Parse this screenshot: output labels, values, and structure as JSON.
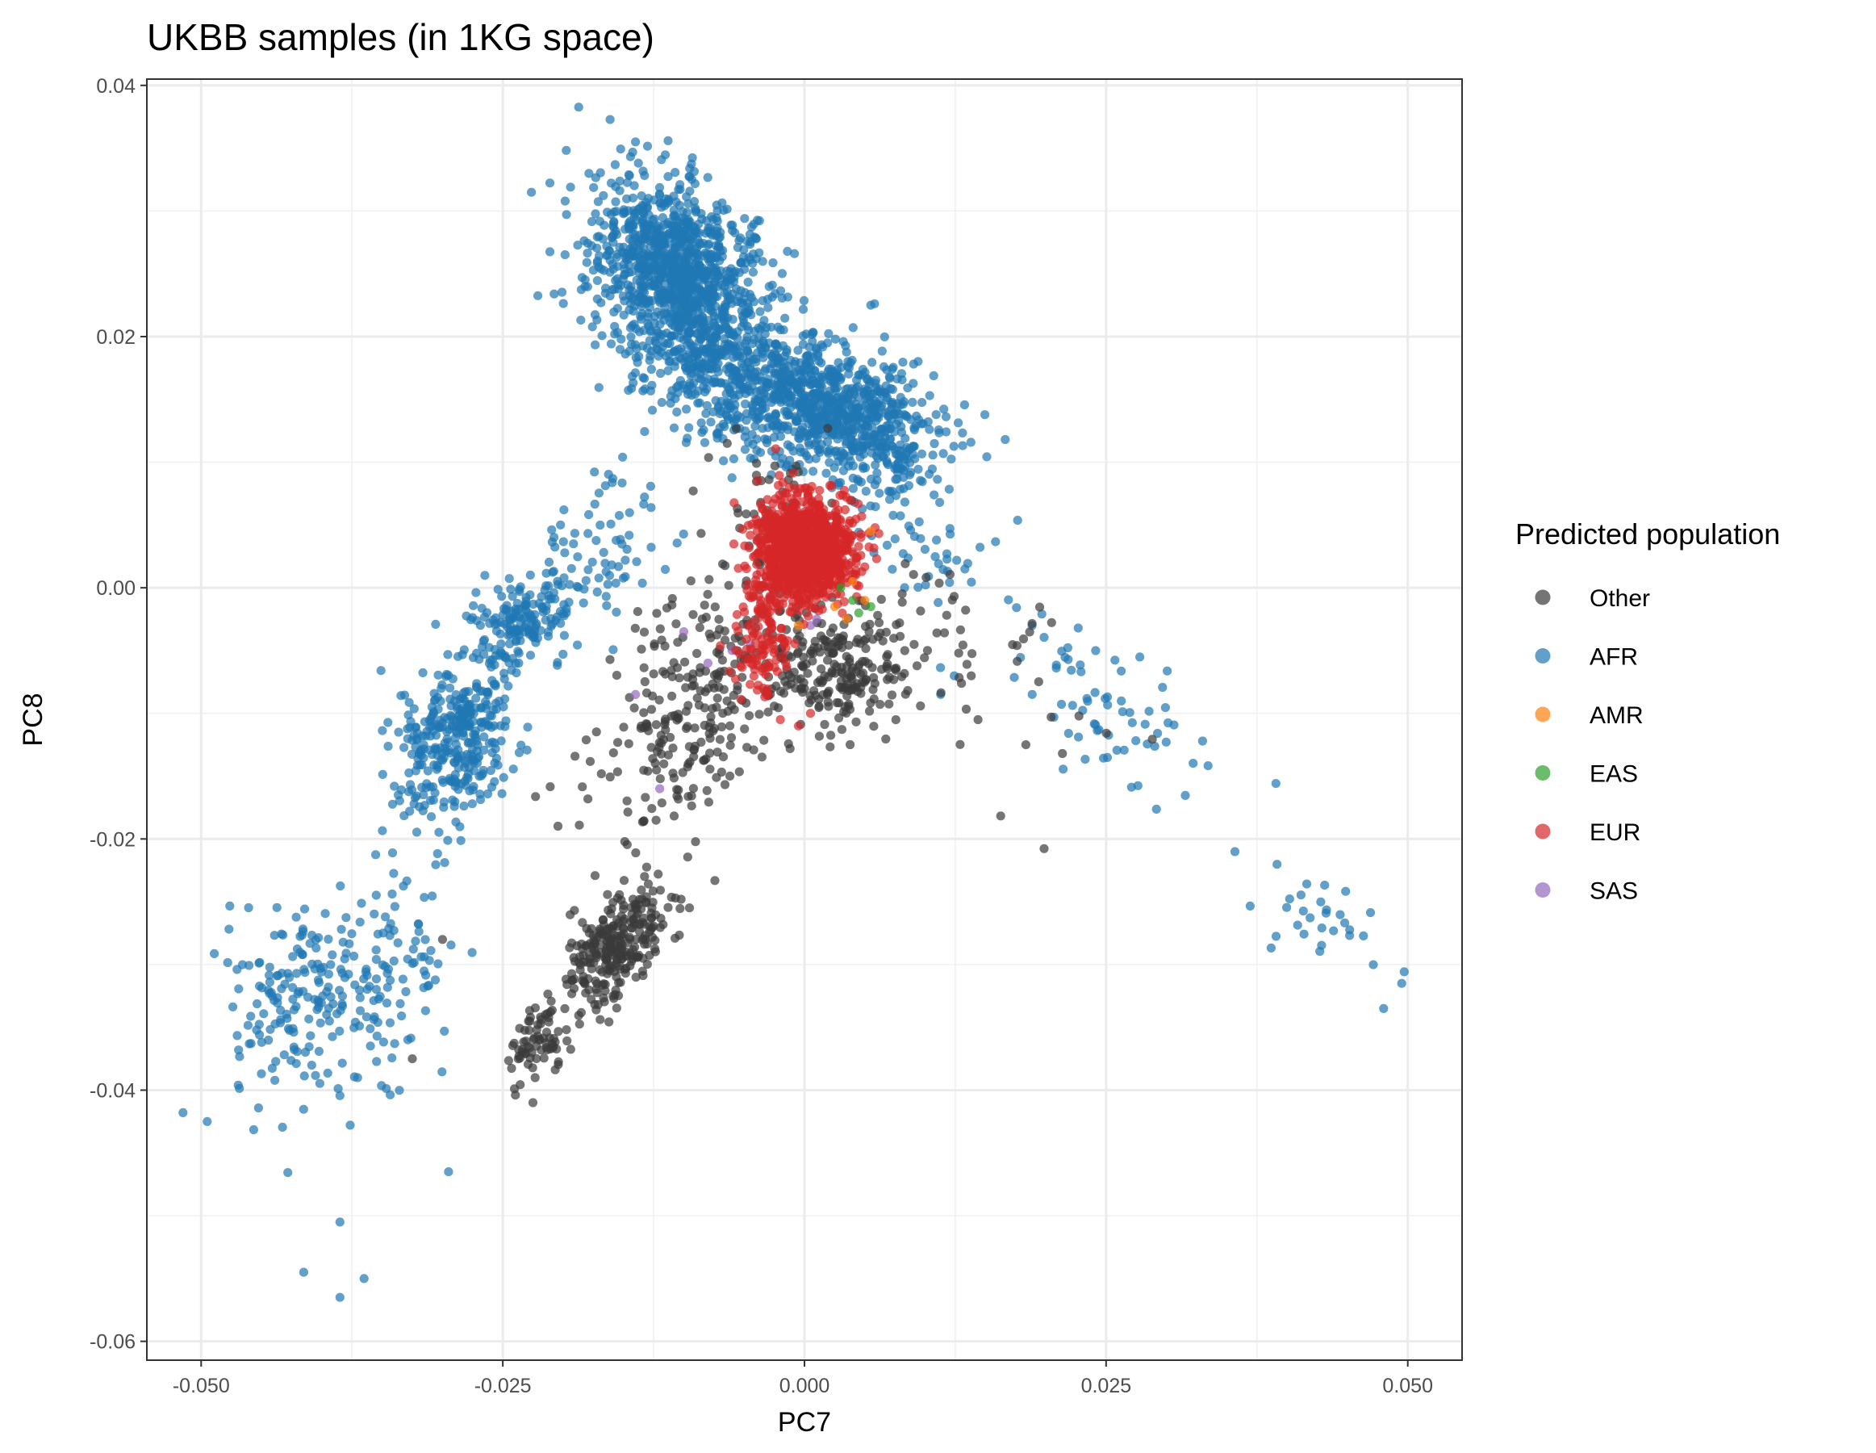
{
  "chart_data": {
    "type": "scatter",
    "title": "UKBB samples (in 1KG space)",
    "xlabel": "PC7",
    "ylabel": "PC8",
    "xlim": [
      -0.0545,
      0.0545
    ],
    "ylim": [
      -0.0615,
      0.0405
    ],
    "x_ticks": [
      -0.05,
      -0.025,
      0.0,
      0.025,
      0.05
    ],
    "x_tick_labels": [
      "-0.050",
      "-0.025",
      "0.000",
      "0.025",
      "0.050"
    ],
    "y_ticks": [
      -0.06,
      -0.04,
      -0.02,
      0.0,
      0.02,
      0.04
    ],
    "y_tick_labels": [
      "-0.06",
      "-0.04",
      "-0.02",
      "0.00",
      "0.02",
      "0.04"
    ],
    "grid": true,
    "legend_title": "Predicted population",
    "legend_position": "right",
    "series": [
      {
        "name": "Other",
        "color": "#3a3a3a",
        "clusters": [
          {
            "cx": -0.0155,
            "cy": -0.0285,
            "sx": 0.0022,
            "sy": 0.0025,
            "rho": 0.55,
            "n": 280
          },
          {
            "cx": -0.0225,
            "cy": -0.0365,
            "sx": 0.0013,
            "sy": 0.0013,
            "rho": 0.3,
            "n": 70
          },
          {
            "cx": 0.003,
            "cy": -0.0065,
            "sx": 0.003,
            "sy": 0.0025,
            "rho": 0.1,
            "n": 220
          },
          {
            "cx": -0.008,
            "cy": -0.006,
            "sx": 0.0045,
            "sy": 0.0045,
            "rho": 0.6,
            "n": 200
          },
          {
            "cx": -0.0095,
            "cy": -0.013,
            "sx": 0.004,
            "sy": 0.004,
            "rho": 0.7,
            "n": 90
          },
          {
            "cx": -0.003,
            "cy": 0.006,
            "sx": 0.003,
            "sy": 0.003,
            "rho": 0.0,
            "n": 50
          },
          {
            "cx": 0.012,
            "cy": -0.004,
            "sx": 0.0045,
            "sy": 0.004,
            "rho": -0.3,
            "n": 40
          },
          {
            "cx": 0.022,
            "cy": -0.012,
            "sx": 0.003,
            "sy": 0.003,
            "rho": 0.0,
            "n": 10
          }
        ],
        "points": [
          [
            -0.0225,
            -0.041
          ],
          [
            -0.0325,
            -0.0375
          ],
          [
            -0.03,
            -0.028
          ]
        ]
      },
      {
        "name": "AFR",
        "color": "#1f77b4",
        "clusters": [
          {
            "cx": -0.0105,
            "cy": 0.025,
            "sx": 0.0035,
            "sy": 0.0035,
            "rho": -0.3,
            "n": 1100
          },
          {
            "cx": 0.003,
            "cy": 0.014,
            "sx": 0.004,
            "sy": 0.003,
            "rho": -0.4,
            "n": 750
          },
          {
            "cx": -0.006,
            "cy": 0.017,
            "sx": 0.004,
            "sy": 0.003,
            "rho": -0.3,
            "n": 400
          },
          {
            "cx": -0.029,
            "cy": -0.012,
            "sx": 0.0025,
            "sy": 0.003,
            "rho": 0.3,
            "n": 340
          },
          {
            "cx": -0.0235,
            "cy": -0.003,
            "sx": 0.002,
            "sy": 0.002,
            "rho": 0.2,
            "n": 160
          },
          {
            "cx": -0.042,
            "cy": -0.033,
            "sx": 0.003,
            "sy": 0.004,
            "rho": 0.1,
            "n": 170
          },
          {
            "cx": -0.034,
            "cy": -0.03,
            "sx": 0.0025,
            "sy": 0.005,
            "rho": 0.2,
            "n": 100
          },
          {
            "cx": -0.0165,
            "cy": 0.003,
            "sx": 0.003,
            "sy": 0.004,
            "rho": 0.5,
            "n": 80
          },
          {
            "cx": 0.024,
            "cy": -0.008,
            "sx": 0.0045,
            "sy": 0.004,
            "rho": -0.5,
            "n": 70
          },
          {
            "cx": 0.042,
            "cy": -0.026,
            "sx": 0.0025,
            "sy": 0.002,
            "rho": -0.3,
            "n": 30
          },
          {
            "cx": 0.011,
            "cy": 0.003,
            "sx": 0.0035,
            "sy": 0.003,
            "rho": -0.3,
            "n": 40
          }
        ],
        "points": [
          [
            -0.0495,
            -0.0425
          ],
          [
            -0.0415,
            -0.0545
          ],
          [
            -0.0385,
            -0.0565
          ],
          [
            -0.0365,
            -0.055
          ],
          [
            -0.0385,
            -0.0505
          ],
          [
            -0.0295,
            -0.0465
          ],
          [
            0.0495,
            -0.0315
          ],
          [
            0.048,
            -0.0335
          ],
          [
            0.0055,
            0.0225
          ],
          [
            -0.014,
            0.0355
          ]
        ]
      },
      {
        "name": "AMR",
        "color": "#ff7f0e",
        "clusters": [],
        "points": [
          [
            0.0035,
            -0.0025
          ],
          [
            0.005,
            -0.001
          ],
          [
            0.004,
            0.0005
          ],
          [
            0.0055,
            0.0045
          ],
          [
            -0.0005,
            -0.003
          ],
          [
            0.0025,
            -0.0015
          ]
        ]
      },
      {
        "name": "EAS",
        "color": "#2ca02c",
        "clusters": [],
        "points": [
          [
            0.004,
            -0.001
          ],
          [
            0.0055,
            -0.0015
          ],
          [
            0.003,
            0.0
          ],
          [
            0.0045,
            -0.002
          ]
        ]
      },
      {
        "name": "EUR",
        "color": "#d62728",
        "clusters": [
          {
            "cx": 0.0,
            "cy": 0.003,
            "sx": 0.002,
            "sy": 0.002,
            "rho": 0.0,
            "n": 1200
          },
          {
            "cx": -0.0035,
            "cy": -0.0045,
            "sx": 0.0013,
            "sy": 0.0025,
            "rho": 0.3,
            "n": 120
          }
        ],
        "points": [
          [
            -0.0005,
            -0.011
          ],
          [
            -0.002,
            -0.0105
          ],
          [
            0.0005,
            -0.01
          ]
        ]
      },
      {
        "name": "SAS",
        "color": "#9467bd",
        "clusters": [],
        "points": [
          [
            -0.001,
            0.0015
          ],
          [
            -0.012,
            -0.016
          ],
          [
            -0.014,
            -0.0085
          ],
          [
            -0.008,
            -0.006
          ],
          [
            -0.006,
            -0.005
          ],
          [
            -0.01,
            -0.0035
          ],
          [
            0.0005,
            -0.003
          ],
          [
            0.001,
            -0.0025
          ],
          [
            -0.0045,
            -0.0045
          ]
        ]
      }
    ]
  }
}
